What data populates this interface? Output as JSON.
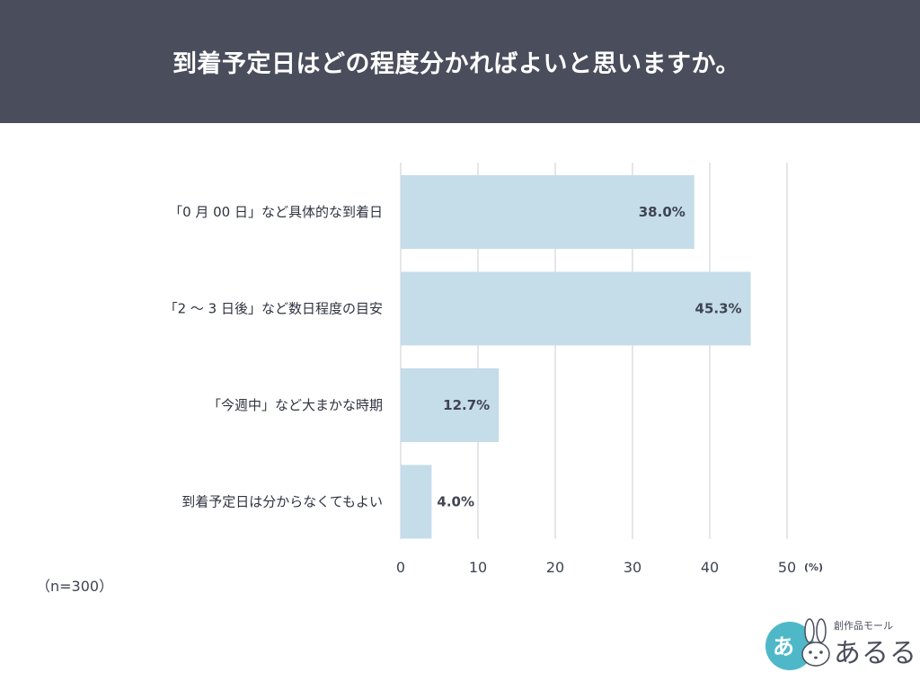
{
  "page": {
    "title": "到着予定日はどの程度分かればよいと思いますか。",
    "sample_note": "（n=300）"
  },
  "logo": {
    "badge_text": "あ",
    "small_text": "創作品モール",
    "big_text": "あるる"
  },
  "colors": {
    "header_bg": "#4a4e5c",
    "bar": "#c5dce9",
    "grid": "#d4d6dc",
    "text": "#3f4452",
    "logo_accent": "#4fb8c8"
  },
  "chart_data": {
    "type": "bar",
    "orientation": "horizontal",
    "categories": [
      "「0 月 00 日」など具体的な到着日",
      "「2 ～ 3 日後」など数日程度の目安",
      "「今週中」など大まかな時期",
      "到着予定日は分からなくてもよい"
    ],
    "values": [
      38.0,
      45.3,
      12.7,
      4.0
    ],
    "value_labels": [
      "38.0%",
      "45.3%",
      "12.7%",
      "4.0%"
    ],
    "xlim": [
      0,
      50
    ],
    "xticks": [
      0,
      10,
      20,
      30,
      40,
      50
    ],
    "xtick_labels": [
      "0",
      "10",
      "20",
      "30",
      "40",
      "50"
    ],
    "x_unit": "(%)",
    "grid": true,
    "legend": false
  }
}
